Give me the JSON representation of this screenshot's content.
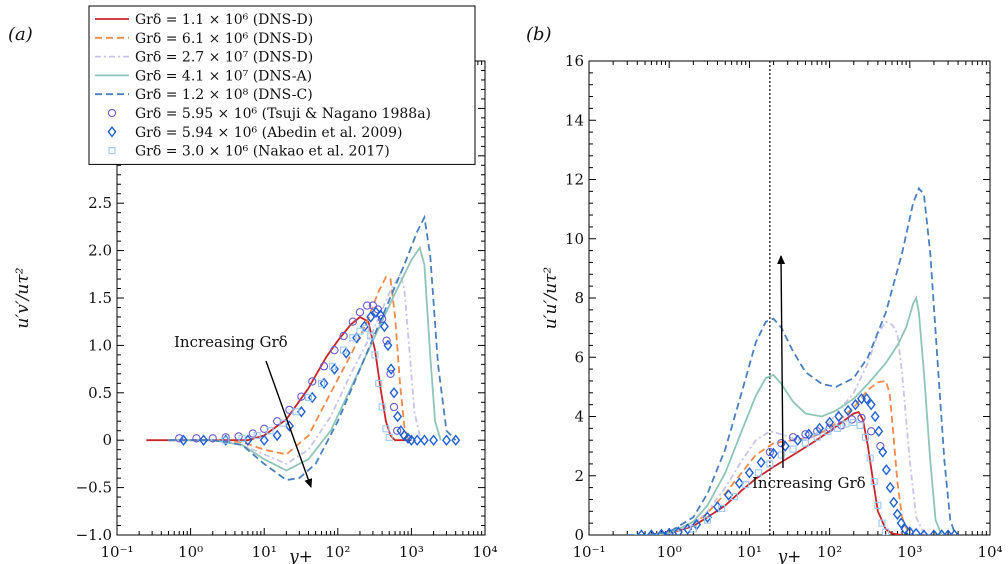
{
  "chart_data": [
    {
      "panel_label": "(a)",
      "type": "line",
      "xscale": "log",
      "xlim": [
        0.1,
        10000
      ],
      "ylim": [
        -1.0,
        4.0
      ],
      "xlabel": "y+",
      "ylabel": "u′v′/uτ²",
      "xticks": [
        "10⁻¹",
        "10⁰",
        "10¹",
        "10²",
        "10³",
        "10⁴"
      ],
      "yticks": [
        "−1.0",
        "−0.5",
        "0",
        "0.5",
        "1.0",
        "1.5",
        "2.0",
        "2.5",
        "3.0",
        "3.5",
        "4.0"
      ],
      "annotation": "Increasing Grδ",
      "legend_placement": "top-left",
      "grid": false,
      "series": [
        {
          "name": "Grδ = 1.1 × 10⁶ (DNS-D)",
          "color": "#c8242b",
          "style": "solid",
          "x": [
            0.25,
            1,
            3,
            6,
            10,
            20,
            40,
            70,
            100,
            150,
            200,
            260,
            320,
            380,
            450,
            520,
            600,
            800,
            1000
          ],
          "y": [
            0,
            0,
            0,
            0,
            0.05,
            0.22,
            0.55,
            0.88,
            1.05,
            1.22,
            1.3,
            1.25,
            0.95,
            0.55,
            0.2,
            0.05,
            0,
            0,
            0
          ]
        },
        {
          "name": "Grδ = 6.1 × 10⁶ (DNS-D)",
          "color": "#f08a4b",
          "style": "dashed",
          "x": [
            0.5,
            2,
            5,
            10,
            20,
            40,
            80,
            150,
            250,
            350,
            450,
            520,
            600,
            700,
            800,
            900,
            1000
          ],
          "y": [
            0,
            0,
            -0.02,
            -0.1,
            -0.15,
            0.05,
            0.5,
            0.9,
            1.25,
            1.55,
            1.72,
            1.7,
            1.3,
            0.6,
            0.15,
            0.02,
            0
          ]
        },
        {
          "name": "Grδ = 2.7 × 10⁷ (DNS-D)",
          "color": "#c8c3ea",
          "style": "dashdot",
          "x": [
            0.5,
            2,
            5,
            10,
            20,
            40,
            80,
            150,
            300,
            500,
            700,
            800,
            950,
            1100,
            1300,
            1500
          ],
          "y": [
            0,
            0,
            -0.05,
            -0.15,
            -0.25,
            -0.1,
            0.25,
            0.7,
            1.15,
            1.55,
            1.75,
            1.6,
            0.9,
            0.3,
            0.05,
            0
          ]
        },
        {
          "name": "Grδ = 4.1 × 10⁷ (DNS-A)",
          "color": "#8fc4b8",
          "style": "solid",
          "x": [
            0.5,
            2,
            5,
            10,
            20,
            40,
            80,
            150,
            300,
            600,
            1000,
            1300,
            1500,
            1800,
            2100,
            2500
          ],
          "y": [
            0,
            0,
            -0.05,
            -0.2,
            -0.32,
            -0.2,
            0.1,
            0.55,
            1.05,
            1.55,
            1.9,
            2.03,
            1.85,
            0.9,
            0.2,
            0
          ]
        },
        {
          "name": "Grδ = 1.2 × 10⁸ (DNS-C)",
          "color": "#4a7fbd",
          "style": "dashed",
          "x": [
            0.5,
            2,
            5,
            10,
            20,
            30,
            50,
            100,
            200,
            400,
            800,
            1200,
            1500,
            1800,
            2300,
            3000,
            4000
          ],
          "y": [
            0,
            0,
            -0.05,
            -0.25,
            -0.42,
            -0.4,
            -0.25,
            0.2,
            0.75,
            1.3,
            1.85,
            2.2,
            2.35,
            1.95,
            0.8,
            0.1,
            0
          ]
        },
        {
          "name": "Grδ = 5.95 × 10⁶ (Tsuji & Nagano 1988a)",
          "color": "#6a5acd",
          "marker": "circle",
          "x": [
            0.7,
            1.2,
            2,
            3,
            4.5,
            7,
            10,
            15,
            22,
            32,
            45,
            65,
            90,
            120,
            160,
            200,
            250,
            300,
            350,
            400,
            460,
            520,
            580,
            640
          ],
          "y": [
            0.02,
            0.02,
            0.02,
            0.03,
            0.04,
            0.07,
            0.12,
            0.2,
            0.32,
            0.46,
            0.62,
            0.78,
            0.95,
            1.1,
            1.25,
            1.35,
            1.42,
            1.42,
            1.38,
            1.28,
            1.05,
            0.7,
            0.35,
            0.1
          ]
        },
        {
          "name": "Grδ = 5.94 × 10⁶ (Abedin et al. 2009)",
          "color": "#1f5fd0",
          "marker": "diamond",
          "x": [
            0.8,
            1.5,
            3,
            6,
            10,
            15,
            22,
            32,
            45,
            65,
            90,
            130,
            180,
            230,
            280,
            330,
            380,
            430,
            480,
            530,
            580,
            650,
            720,
            800,
            900,
            1000,
            1200,
            1500,
            2000,
            3000,
            4000
          ],
          "y": [
            0,
            0,
            0,
            0,
            0,
            0.05,
            0.15,
            0.3,
            0.45,
            0.6,
            0.75,
            0.92,
            1.08,
            1.2,
            1.3,
            1.35,
            1.32,
            1.2,
            1.0,
            0.75,
            0.5,
            0.25,
            0.1,
            0.05,
            0.02,
            0,
            0,
            0,
            0,
            0,
            0
          ]
        },
        {
          "name": "Grδ = 3.0 × 10⁶ (Nakao et al. 2017)",
          "color": "#9cc8ee",
          "marker": "square",
          "x": [
            3,
            5,
            8,
            12,
            18,
            27,
            40,
            60,
            85,
            120,
            160,
            200,
            240,
            280,
            320,
            360,
            400,
            450,
            500
          ],
          "y": [
            0,
            0.02,
            0.05,
            0.1,
            0.18,
            0.3,
            0.45,
            0.6,
            0.78,
            0.95,
            1.08,
            1.15,
            1.18,
            1.1,
            0.9,
            0.6,
            0.35,
            0.12,
            0.03
          ]
        }
      ]
    },
    {
      "panel_label": "(b)",
      "type": "line",
      "xscale": "log",
      "xlim": [
        0.1,
        10000
      ],
      "ylim": [
        0,
        16
      ],
      "xlabel": "y+",
      "ylabel": "u′u′/uτ²",
      "xticks": [
        "10⁻¹",
        "10⁰",
        "10¹",
        "10²",
        "10³",
        "10⁴"
      ],
      "yticks": [
        "0",
        "2",
        "4",
        "6",
        "8",
        "10",
        "12",
        "14",
        "16"
      ],
      "annotation": "Increasing Grδ",
      "reference_line_x": 18,
      "grid": false,
      "series": [
        {
          "name": "Grδ = 1.1 × 10⁶ (DNS-D)",
          "color": "#c8242b",
          "style": "solid",
          "x": [
            0.3,
            0.5,
            1,
            2,
            3,
            5,
            8,
            12,
            20,
            35,
            60,
            100,
            150,
            200,
            230,
            260,
            300,
            350,
            400,
            500,
            600,
            800
          ],
          "y": [
            0,
            0,
            0.05,
            0.3,
            0.6,
            1.0,
            1.5,
            1.9,
            2.3,
            2.7,
            3.1,
            3.5,
            3.85,
            4.1,
            4.15,
            3.9,
            3.0,
            1.8,
            0.8,
            0.2,
            0.05,
            0
          ]
        },
        {
          "name": "Grδ = 6.1 × 10⁶ (DNS-D)",
          "color": "#f08a4b",
          "style": "dashed",
          "x": [
            0.3,
            0.5,
            1,
            2,
            3,
            5,
            8,
            12,
            20,
            35,
            60,
            100,
            200,
            300,
            400,
            500,
            560,
            620,
            700,
            800,
            950
          ],
          "y": [
            0,
            0,
            0.05,
            0.35,
            0.75,
            1.4,
            2.1,
            2.7,
            3.1,
            3.2,
            3.3,
            3.6,
            4.3,
            4.9,
            5.15,
            5.2,
            4.8,
            3.5,
            1.8,
            0.6,
            0.1
          ]
        },
        {
          "name": "Grδ = 2.7 × 10⁷ (DNS-D)",
          "color": "#c8c3ea",
          "style": "dashdot",
          "x": [
            0.3,
            0.5,
            1,
            2,
            3,
            5,
            8,
            12,
            18,
            25,
            40,
            60,
            100,
            200,
            300,
            400,
            500,
            600,
            700,
            800,
            1000,
            1200,
            1500
          ],
          "y": [
            0,
            0,
            0.05,
            0.35,
            0.8,
            1.6,
            2.5,
            3.2,
            3.5,
            3.4,
            3.2,
            3.3,
            3.8,
            4.8,
            5.8,
            6.8,
            7.2,
            7.1,
            6.8,
            5.5,
            2.5,
            0.6,
            0.05
          ]
        },
        {
          "name": "Grδ = 4.1 × 10⁷ (DNS-A)",
          "color": "#8fc4b8",
          "style": "solid",
          "x": [
            0.3,
            0.5,
            1,
            2,
            3,
            5,
            8,
            12,
            16,
            20,
            25,
            35,
            50,
            80,
            120,
            200,
            300,
            500,
            700,
            900,
            1100,
            1200,
            1300,
            1500,
            1800,
            2100,
            2500
          ],
          "y": [
            0,
            0,
            0.05,
            0.45,
            1.0,
            2.1,
            3.5,
            4.7,
            5.3,
            5.4,
            5.1,
            4.5,
            4.1,
            4.0,
            4.2,
            4.6,
            5.1,
            5.8,
            6.4,
            7.0,
            7.8,
            8.0,
            7.5,
            5.5,
            2.5,
            0.5,
            0
          ]
        },
        {
          "name": "Grδ = 1.2 × 10⁸ (DNS-C)",
          "color": "#4a7fbd",
          "style": "dashed",
          "x": [
            0.3,
            0.5,
            1,
            2,
            3,
            5,
            8,
            12,
            16,
            20,
            25,
            35,
            50,
            80,
            120,
            200,
            300,
            500,
            800,
            1100,
            1300,
            1500,
            1800,
            2200,
            2700,
            3200,
            3700
          ],
          "y": [
            0,
            0,
            0.1,
            0.6,
            1.4,
            2.9,
            4.8,
            6.5,
            7.2,
            7.3,
            7.0,
            6.2,
            5.5,
            5.1,
            5.0,
            5.3,
            6.0,
            7.5,
            9.5,
            11.2,
            11.7,
            11.5,
            9.5,
            6.0,
            2.5,
            0.5,
            0
          ]
        },
        {
          "name": "Grδ = 5.95 × 10⁶ (Tsuji & Nagano 1988a)",
          "color": "#6a5acd",
          "marker": "circle",
          "x": [
            18,
            25,
            35,
            50,
            70,
            100,
            140,
            190,
            250,
            330,
            430
          ],
          "y": [
            2.8,
            3.1,
            3.3,
            3.4,
            3.5,
            3.6,
            3.7,
            3.9,
            3.95,
            3.5,
            3.0
          ]
        },
        {
          "name": "Grδ = 5.94 × 10⁶ (Abedin et al. 2009)",
          "color": "#1f5fd0",
          "marker": "diamond",
          "x": [
            0.45,
            0.6,
            0.8,
            1.0,
            1.3,
            1.7,
            2.2,
            3,
            4,
            5.5,
            7.5,
            10,
            14,
            20,
            28,
            40,
            55,
            75,
            100,
            130,
            170,
            210,
            250,
            290,
            330,
            370,
            410,
            460,
            510,
            570,
            630,
            700,
            780,
            870,
            1000,
            1200,
            1500,
            2000,
            2500,
            3000,
            3600
          ],
          "y": [
            0,
            0,
            0.02,
            0.05,
            0.1,
            0.2,
            0.35,
            0.6,
            0.95,
            1.35,
            1.75,
            2.1,
            2.45,
            2.75,
            3.0,
            3.2,
            3.4,
            3.6,
            3.8,
            4.0,
            4.2,
            4.4,
            4.6,
            4.6,
            4.4,
            4.0,
            3.5,
            2.8,
            2.2,
            1.6,
            1.1,
            0.7,
            0.4,
            0.2,
            0.1,
            0.05,
            0,
            0,
            0,
            0,
            0
          ]
        },
        {
          "name": "Grδ = 3.0 × 10⁶ (Nakao et al. 2017)",
          "color": "#9cc8ee",
          "marker": "square",
          "x": [
            2,
            3,
            4.5,
            6.5,
            9,
            13,
            18,
            25,
            35,
            50,
            70,
            95,
            125,
            160,
            200,
            240,
            280,
            320,
            360,
            400,
            450,
            500
          ],
          "y": [
            0.2,
            0.5,
            0.9,
            1.3,
            1.7,
            2.1,
            2.4,
            2.7,
            2.9,
            3.1,
            3.3,
            3.5,
            3.6,
            3.75,
            3.8,
            3.7,
            3.3,
            2.6,
            1.8,
            1.0,
            0.4,
            0.1
          ]
        }
      ]
    }
  ]
}
